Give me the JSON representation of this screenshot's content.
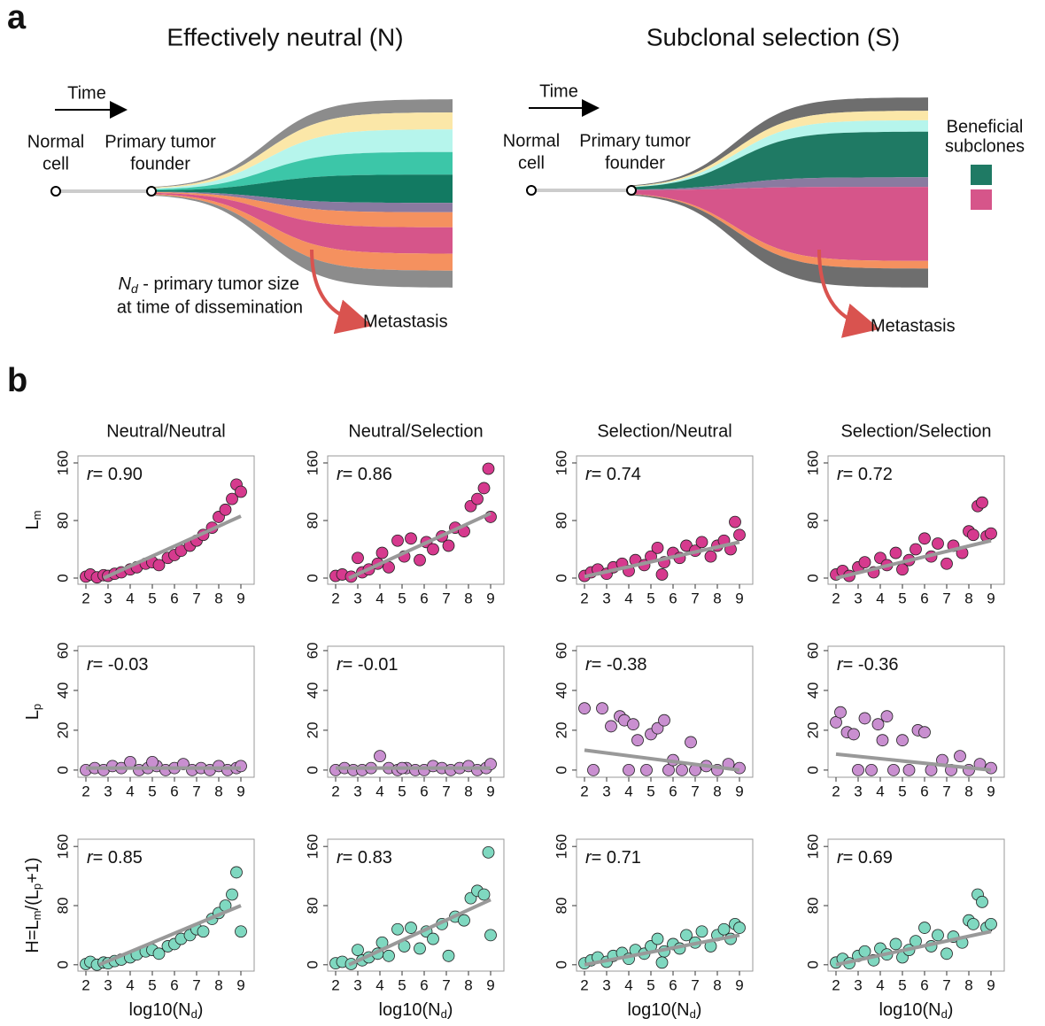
{
  "panel_a": {
    "label": "a",
    "left_title": "Effectively neutral (N)",
    "right_title": "Subclonal selection (S)",
    "time_left": "Time",
    "time_right": "Time",
    "normal_left": [
      "Normal",
      "cell"
    ],
    "normal_right": [
      "Normal",
      "cell"
    ],
    "founder_left": [
      "Primary tumor",
      "founder"
    ],
    "founder_right": [
      "Primary tumor",
      "founder"
    ],
    "nd_note": {
      "symbol": "N",
      "sub": "d",
      "line1": " - primary tumor size",
      "line2": "at time of dissemination"
    },
    "metastasis_left": "Metastasis",
    "metastasis_right": "Metastasis",
    "legend_title": [
      "Beneficial",
      "subclones"
    ],
    "legend_colors": [
      "#1f7a64",
      "#d6558a"
    ]
  },
  "panel_b_label": "b",
  "chart_data": [
    {
      "type": "scatter",
      "title": "Neutral/Neutral",
      "color": "#d63a8e",
      "xlim": [
        1.64,
        9.6
      ],
      "ylim": [
        -8.6,
        169.8
      ],
      "xticks": [
        2,
        3,
        4,
        5,
        6,
        7,
        8,
        9
      ],
      "yticks": [
        0,
        80,
        160
      ],
      "y_label": [
        {
          "text": "L"
        },
        {
          "text": "m",
          "sub": true
        }
      ],
      "annotation": {
        "symbol": "r",
        "text": "= 0.90"
      },
      "x": [
        2,
        2.2,
        2.5,
        2.8,
        3,
        3.3,
        3.6,
        4,
        4.3,
        4.7,
        5,
        5.3,
        5.7,
        6,
        6.3,
        6.7,
        7,
        7.3,
        7.7,
        8,
        8.3,
        8.6,
        8.8,
        9
      ],
      "values": [
        2,
        5,
        1,
        4,
        3,
        6,
        8,
        12,
        15,
        20,
        22,
        18,
        28,
        32,
        38,
        45,
        52,
        60,
        70,
        85,
        95,
        110,
        130,
        120
      ],
      "fit": {
        "x": [
          2.8,
          9
        ],
        "y": [
          0,
          86
        ]
      }
    },
    {
      "type": "scatter",
      "title": "Neutral/Selection",
      "color": "#d63a8e",
      "xlim": [
        1.64,
        9.6
      ],
      "ylim": [
        -8.6,
        169.8
      ],
      "xticks": [
        2,
        3,
        4,
        5,
        6,
        7,
        8,
        9
      ],
      "yticks": [
        0,
        80,
        160
      ],
      "annotation": {
        "symbol": "r",
        "text": "= 0.86"
      },
      "x": [
        2,
        2.3,
        2.7,
        3,
        3.2,
        3.5,
        3.9,
        4.1,
        4.4,
        4.8,
        5.1,
        5.4,
        5.8,
        6.1,
        6.4,
        6.8,
        7.1,
        7.4,
        7.8,
        8.1,
        8.4,
        8.7,
        8.9,
        9
      ],
      "values": [
        3,
        5,
        2,
        28,
        8,
        12,
        20,
        35,
        15,
        52,
        30,
        55,
        25,
        50,
        40,
        58,
        45,
        70,
        65,
        100,
        110,
        125,
        152,
        85
      ],
      "fit": {
        "x": [
          2.6,
          9
        ],
        "y": [
          0,
          90
        ]
      }
    },
    {
      "type": "scatter",
      "title": "Selection/Neutral",
      "color": "#d63a8e",
      "xlim": [
        1.64,
        9.6
      ],
      "ylim": [
        -8.6,
        169.8
      ],
      "xticks": [
        2,
        3,
        4,
        5,
        6,
        7,
        8,
        9
      ],
      "yticks": [
        0,
        80,
        160
      ],
      "annotation": {
        "symbol": "r",
        "text": "= 0.74"
      },
      "x": [
        2,
        2.3,
        2.6,
        3,
        3.3,
        3.7,
        4,
        4.3,
        4.7,
        5,
        5.3,
        5.6,
        6,
        6.3,
        6.6,
        7,
        7.3,
        7.7,
        8,
        8.3,
        8.6,
        8.8,
        9,
        5.5
      ],
      "values": [
        3,
        8,
        12,
        6,
        15,
        20,
        10,
        25,
        18,
        30,
        42,
        22,
        35,
        28,
        45,
        38,
        50,
        30,
        45,
        52,
        40,
        78,
        60,
        5
      ],
      "fit": {
        "x": [
          2,
          9
        ],
        "y": [
          2,
          50
        ]
      }
    },
    {
      "type": "scatter",
      "title": "Selection/Selection",
      "color": "#d63a8e",
      "xlim": [
        1.64,
        9.6
      ],
      "ylim": [
        -8.6,
        169.8
      ],
      "xticks": [
        2,
        3,
        4,
        5,
        6,
        7,
        8,
        9
      ],
      "yticks": [
        0,
        80,
        160
      ],
      "annotation": {
        "symbol": "r",
        "text": "= 0.72"
      },
      "x": [
        2,
        2.3,
        2.6,
        3,
        3.3,
        3.7,
        4,
        4.3,
        4.7,
        5,
        5.3,
        5.6,
        6,
        6.3,
        6.6,
        7,
        7.3,
        7.7,
        8,
        8.2,
        8.4,
        8.6,
        8.8,
        9
      ],
      "values": [
        5,
        10,
        3,
        15,
        22,
        8,
        28,
        18,
        35,
        12,
        25,
        40,
        55,
        30,
        48,
        20,
        45,
        35,
        65,
        60,
        100,
        105,
        58,
        62
      ],
      "fit": {
        "x": [
          2,
          9
        ],
        "y": [
          0,
          52
        ]
      }
    },
    {
      "type": "scatter",
      "color": "#c98fd0",
      "xlim": [
        1.64,
        9.6
      ],
      "ylim": [
        -3.6,
        62.2
      ],
      "xticks": [
        2,
        3,
        4,
        5,
        6,
        7,
        8,
        9
      ],
      "yticks": [
        0,
        20,
        40,
        60
      ],
      "y_label": [
        {
          "text": "L"
        },
        {
          "text": "p",
          "sub": true
        }
      ],
      "annotation": {
        "symbol": "r",
        "text": "= -0.03"
      },
      "x": [
        2,
        2.4,
        2.8,
        3.2,
        3.6,
        4,
        4.4,
        4.8,
        5.2,
        5.6,
        6,
        6.4,
        6.8,
        7.2,
        7.6,
        8,
        8.4,
        8.8,
        9,
        5
      ],
      "values": [
        0,
        1,
        0,
        2,
        1,
        4,
        0,
        1,
        2,
        0,
        1,
        3,
        0,
        1,
        0,
        2,
        0,
        1,
        2,
        4
      ],
      "fit": {
        "x": [
          2,
          9
        ],
        "y": [
          1,
          1
        ]
      }
    },
    {
      "type": "scatter",
      "color": "#c98fd0",
      "xlim": [
        1.64,
        9.6
      ],
      "ylim": [
        -3.6,
        62.2
      ],
      "xticks": [
        2,
        3,
        4,
        5,
        6,
        7,
        8,
        9
      ],
      "yticks": [
        0,
        20,
        40,
        60
      ],
      "annotation": {
        "symbol": "r",
        "text": "= -0.01"
      },
      "x": [
        2,
        2.4,
        2.8,
        3.2,
        3.6,
        4,
        4.4,
        4.8,
        5.2,
        5.6,
        6,
        6.4,
        6.8,
        7.2,
        7.6,
        8,
        8.4,
        8.8,
        9,
        5
      ],
      "values": [
        0,
        1,
        0,
        0,
        1,
        7,
        1,
        0,
        1,
        0,
        0,
        2,
        1,
        0,
        1,
        2,
        0,
        1,
        3,
        1
      ],
      "fit": {
        "x": [
          2,
          9
        ],
        "y": [
          1,
          1
        ]
      }
    },
    {
      "type": "scatter",
      "color": "#c98fd0",
      "xlim": [
        1.64,
        9.6
      ],
      "ylim": [
        -3.6,
        62.2
      ],
      "xticks": [
        2,
        3,
        4,
        5,
        6,
        7,
        8,
        9
      ],
      "yticks": [
        0,
        20,
        40,
        60
      ],
      "annotation": {
        "symbol": "r",
        "text": "= -0.38"
      },
      "x": [
        2,
        2.4,
        2.8,
        3.2,
        3.6,
        3.8,
        4,
        4.2,
        4.4,
        4.8,
        5,
        5.3,
        5.6,
        5.8,
        6,
        6.4,
        6.8,
        7,
        7.5,
        8,
        8.5,
        9
      ],
      "values": [
        31,
        0,
        31,
        22,
        27,
        25,
        0,
        23,
        15,
        0,
        18,
        21,
        25,
        0,
        5,
        0,
        14,
        0,
        2,
        0,
        3,
        1
      ],
      "fit": {
        "x": [
          2,
          9
        ],
        "y": [
          10,
          0
        ]
      }
    },
    {
      "type": "scatter",
      "color": "#c98fd0",
      "xlim": [
        1.64,
        9.6
      ],
      "ylim": [
        -3.6,
        62.2
      ],
      "xticks": [
        2,
        3,
        4,
        5,
        6,
        7,
        8,
        9
      ],
      "yticks": [
        0,
        20,
        40,
        60
      ],
      "annotation": {
        "symbol": "r",
        "text": "= -0.36"
      },
      "x": [
        2,
        2.2,
        2.5,
        2.8,
        3,
        3.3,
        3.6,
        3.9,
        4.1,
        4.3,
        4.6,
        5,
        5.3,
        5.7,
        6,
        6.3,
        6.8,
        7.2,
        7.6,
        8,
        8.5,
        9
      ],
      "values": [
        24,
        29,
        19,
        18,
        0,
        26,
        0,
        23,
        15,
        27,
        0,
        15,
        0,
        20,
        19,
        0,
        5,
        0,
        7,
        0,
        3,
        1
      ],
      "fit": {
        "x": [
          2,
          9
        ],
        "y": [
          8,
          0
        ]
      }
    },
    {
      "type": "scatter",
      "color": "#7fd8c0",
      "xlim": [
        1.64,
        9.6
      ],
      "ylim": [
        -8.6,
        169.8
      ],
      "xticks": [
        2,
        3,
        4,
        5,
        6,
        7,
        8,
        9
      ],
      "yticks": [
        0,
        80,
        160
      ],
      "y_label": [
        {
          "text": "H=L"
        },
        {
          "text": "m",
          "sub": true
        },
        {
          "text": "/(L"
        },
        {
          "text": "p",
          "sub": true
        },
        {
          "text": "+1)"
        }
      ],
      "x_label": [
        {
          "text": "log10(N"
        },
        {
          "text": "d",
          "sub": true
        },
        {
          "text": ")"
        }
      ],
      "annotation": {
        "symbol": "r",
        "text": "= 0.85"
      },
      "x": [
        2,
        2.2,
        2.5,
        2.8,
        3,
        3.3,
        3.6,
        4,
        4.3,
        4.7,
        5,
        5.3,
        5.7,
        6,
        6.3,
        6.7,
        7,
        7.3,
        7.7,
        8,
        8.3,
        8.6,
        8.8,
        9
      ],
      "values": [
        1,
        4,
        0,
        3,
        2,
        5,
        7,
        10,
        14,
        18,
        20,
        15,
        25,
        28,
        35,
        40,
        48,
        45,
        62,
        70,
        80,
        95,
        125,
        45
      ],
      "fit": {
        "x": [
          2.6,
          9
        ],
        "y": [
          0,
          80
        ]
      }
    },
    {
      "type": "scatter",
      "color": "#7fd8c0",
      "xlim": [
        1.64,
        9.6
      ],
      "ylim": [
        -8.6,
        169.8
      ],
      "xticks": [
        2,
        3,
        4,
        5,
        6,
        7,
        8,
        9
      ],
      "yticks": [
        0,
        80,
        160
      ],
      "x_label": [
        {
          "text": "log10(N"
        },
        {
          "text": "d",
          "sub": true
        },
        {
          "text": ")"
        }
      ],
      "annotation": {
        "symbol": "r",
        "text": "= 0.83"
      },
      "x": [
        2,
        2.3,
        2.7,
        3,
        3.2,
        3.5,
        3.9,
        4.1,
        4.4,
        4.8,
        5.1,
        5.4,
        5.8,
        6.1,
        6.4,
        6.8,
        7.1,
        7.4,
        7.8,
        8.1,
        8.4,
        8.7,
        8.9,
        9
      ],
      "values": [
        2,
        4,
        1,
        20,
        6,
        10,
        15,
        30,
        12,
        48,
        25,
        50,
        22,
        45,
        35,
        55,
        12,
        65,
        60,
        90,
        100,
        95,
        152,
        40
      ],
      "fit": {
        "x": [
          2.6,
          9
        ],
        "y": [
          0,
          88
        ]
      }
    },
    {
      "type": "scatter",
      "color": "#7fd8c0",
      "xlim": [
        1.64,
        9.6
      ],
      "ylim": [
        -8.6,
        169.8
      ],
      "xticks": [
        2,
        3,
        4,
        5,
        6,
        7,
        8,
        9
      ],
      "yticks": [
        0,
        80,
        160
      ],
      "x_label": [
        {
          "text": "log10(N"
        },
        {
          "text": "d",
          "sub": true
        },
        {
          "text": ")"
        }
      ],
      "annotation": {
        "symbol": "r",
        "text": "= 0.71"
      },
      "x": [
        2,
        2.3,
        2.6,
        3,
        3.3,
        3.7,
        4,
        4.3,
        4.7,
        5,
        5.3,
        5.6,
        6,
        6.3,
        6.6,
        7,
        7.3,
        7.7,
        8,
        8.3,
        8.6,
        8.8,
        9,
        5.5
      ],
      "values": [
        2,
        6,
        10,
        4,
        12,
        16,
        8,
        20,
        15,
        25,
        35,
        18,
        28,
        22,
        40,
        30,
        45,
        25,
        40,
        48,
        35,
        55,
        50,
        3
      ],
      "fit": {
        "x": [
          2,
          9
        ],
        "y": [
          0,
          40
        ]
      }
    },
    {
      "type": "scatter",
      "color": "#7fd8c0",
      "xlim": [
        1.64,
        9.6
      ],
      "ylim": [
        -8.6,
        169.8
      ],
      "xticks": [
        2,
        3,
        4,
        5,
        6,
        7,
        8,
        9
      ],
      "yticks": [
        0,
        80,
        160
      ],
      "x_label": [
        {
          "text": "log10(N"
        },
        {
          "text": "d",
          "sub": true
        },
        {
          "text": ")"
        }
      ],
      "annotation": {
        "symbol": "r",
        "text": "= 0.69"
      },
      "x": [
        2,
        2.3,
        2.6,
        3,
        3.3,
        3.7,
        4,
        4.3,
        4.7,
        5,
        5.3,
        5.6,
        6,
        6.3,
        6.6,
        7,
        7.3,
        7.7,
        8,
        8.2,
        8.4,
        8.6,
        8.8,
        9
      ],
      "values": [
        3,
        8,
        2,
        12,
        18,
        6,
        22,
        14,
        28,
        10,
        20,
        32,
        50,
        25,
        40,
        15,
        38,
        30,
        60,
        55,
        95,
        85,
        50,
        55
      ],
      "fit": {
        "x": [
          2,
          9
        ],
        "y": [
          0,
          45
        ]
      }
    }
  ]
}
